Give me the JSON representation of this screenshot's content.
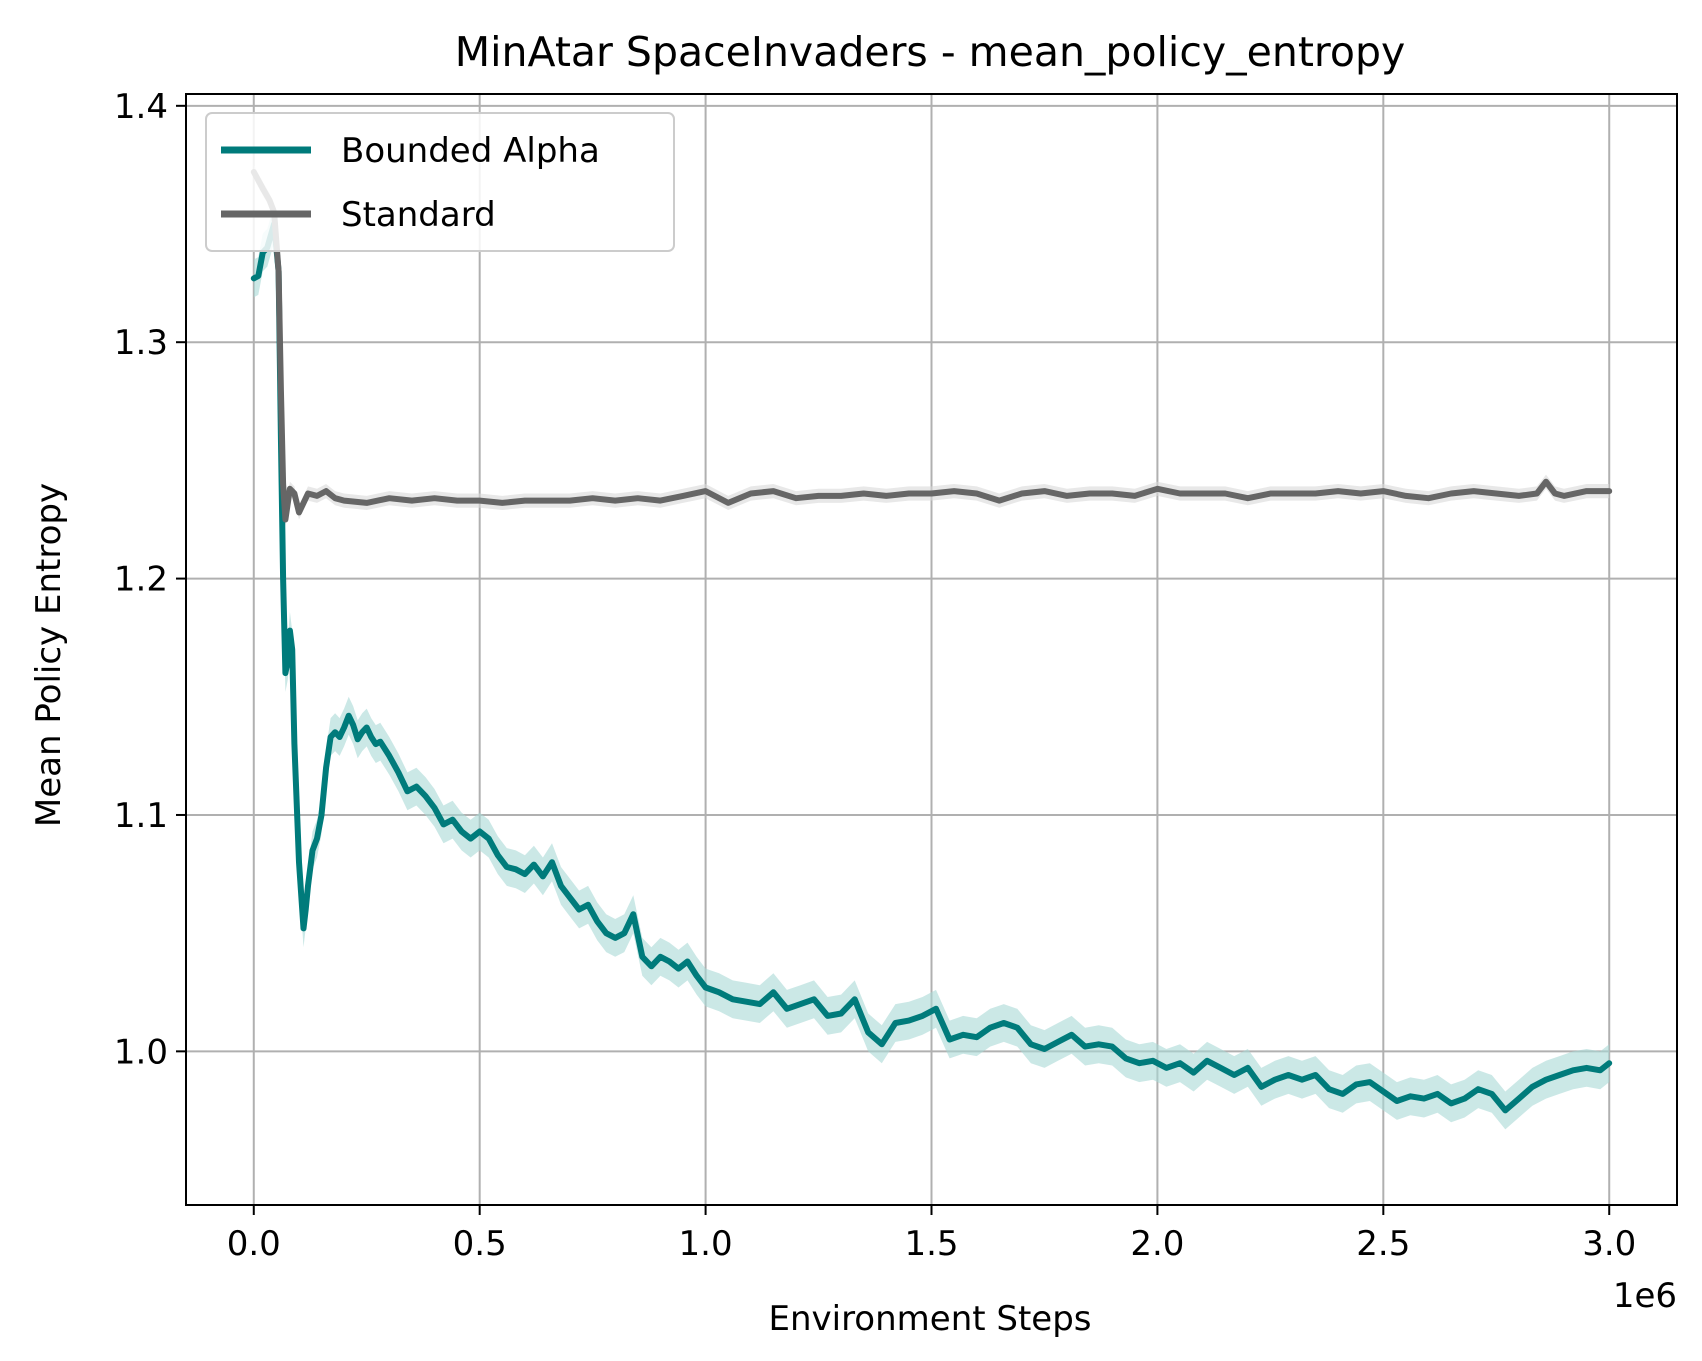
{
  "chart_data": {
    "type": "line",
    "title": "MinAtar SpaceInvaders - mean_policy_entropy",
    "xlabel": "Environment Steps",
    "ylabel": "Mean Policy Entropy",
    "x_offset_label": "1e6",
    "x_scale_note": "x values in millions of environment steps (axis offset label 1e6)",
    "xlim": [
      -0.15,
      3.15
    ],
    "ylim": [
      0.935,
      1.405
    ],
    "xticks": [
      0.0,
      0.5,
      1.0,
      1.5,
      2.0,
      2.5,
      3.0
    ],
    "xtick_labels": [
      "0.0",
      "0.5",
      "1.0",
      "1.5",
      "2.0",
      "2.5",
      "3.0"
    ],
    "yticks": [
      1.0,
      1.1,
      1.2,
      1.3,
      1.4
    ],
    "ytick_labels": [
      "1.0",
      "1.1",
      "1.2",
      "1.3",
      "1.4"
    ],
    "grid": true,
    "legend_position": "top-left",
    "series": [
      {
        "name": "Bounded Alpha",
        "color": "#007b7b",
        "band_color": "#a9d8d6",
        "x": [
          0.0,
          0.01,
          0.02,
          0.03,
          0.045,
          0.055,
          0.06,
          0.065,
          0.07,
          0.075,
          0.08,
          0.085,
          0.09,
          0.1,
          0.11,
          0.115,
          0.12,
          0.13,
          0.14,
          0.15,
          0.16,
          0.17,
          0.18,
          0.19,
          0.2,
          0.21,
          0.22,
          0.23,
          0.24,
          0.25,
          0.26,
          0.27,
          0.28,
          0.3,
          0.32,
          0.34,
          0.36,
          0.38,
          0.4,
          0.42,
          0.44,
          0.46,
          0.48,
          0.5,
          0.52,
          0.54,
          0.56,
          0.58,
          0.6,
          0.62,
          0.64,
          0.66,
          0.68,
          0.7,
          0.72,
          0.74,
          0.76,
          0.78,
          0.8,
          0.82,
          0.84,
          0.86,
          0.88,
          0.9,
          0.92,
          0.94,
          0.96,
          0.98,
          1.0,
          1.03,
          1.06,
          1.09,
          1.12,
          1.15,
          1.18,
          1.21,
          1.24,
          1.27,
          1.3,
          1.33,
          1.36,
          1.39,
          1.42,
          1.45,
          1.48,
          1.51,
          1.54,
          1.57,
          1.6,
          1.63,
          1.66,
          1.69,
          1.72,
          1.75,
          1.78,
          1.81,
          1.84,
          1.87,
          1.9,
          1.93,
          1.96,
          1.99,
          2.02,
          2.05,
          2.08,
          2.11,
          2.14,
          2.17,
          2.2,
          2.23,
          2.26,
          2.29,
          2.32,
          2.35,
          2.38,
          2.41,
          2.44,
          2.47,
          2.5,
          2.53,
          2.56,
          2.59,
          2.62,
          2.65,
          2.68,
          2.71,
          2.74,
          2.77,
          2.8,
          2.83,
          2.86,
          2.89,
          2.92,
          2.95,
          2.98,
          3.0
        ],
        "values": [
          1.327,
          1.328,
          1.338,
          1.34,
          1.35,
          1.33,
          1.26,
          1.2,
          1.16,
          1.165,
          1.178,
          1.17,
          1.13,
          1.08,
          1.052,
          1.06,
          1.07,
          1.085,
          1.09,
          1.1,
          1.12,
          1.133,
          1.135,
          1.133,
          1.137,
          1.142,
          1.138,
          1.132,
          1.135,
          1.137,
          1.133,
          1.13,
          1.131,
          1.125,
          1.118,
          1.11,
          1.112,
          1.108,
          1.103,
          1.096,
          1.098,
          1.093,
          1.09,
          1.093,
          1.09,
          1.083,
          1.078,
          1.077,
          1.075,
          1.079,
          1.074,
          1.08,
          1.07,
          1.065,
          1.06,
          1.062,
          1.055,
          1.05,
          1.048,
          1.05,
          1.058,
          1.04,
          1.036,
          1.04,
          1.038,
          1.035,
          1.038,
          1.032,
          1.027,
          1.025,
          1.022,
          1.021,
          1.02,
          1.025,
          1.018,
          1.02,
          1.022,
          1.015,
          1.016,
          1.022,
          1.008,
          1.003,
          1.012,
          1.013,
          1.015,
          1.018,
          1.005,
          1.007,
          1.006,
          1.01,
          1.012,
          1.01,
          1.003,
          1.001,
          1.004,
          1.007,
          1.002,
          1.003,
          1.002,
          0.997,
          0.995,
          0.996,
          0.993,
          0.995,
          0.991,
          0.996,
          0.993,
          0.99,
          0.993,
          0.985,
          0.988,
          0.99,
          0.988,
          0.99,
          0.984,
          0.982,
          0.986,
          0.987,
          0.983,
          0.979,
          0.981,
          0.98,
          0.982,
          0.978,
          0.98,
          0.984,
          0.982,
          0.975,
          0.98,
          0.985,
          0.988,
          0.99,
          0.992,
          0.993,
          0.992,
          0.995
        ],
        "band_halfwidth": 0.008
      },
      {
        "name": "Standard",
        "color": "#666666",
        "band_color": "#d8d8d8",
        "x": [
          0.0,
          0.02,
          0.035,
          0.045,
          0.055,
          0.06,
          0.065,
          0.07,
          0.08,
          0.09,
          0.1,
          0.12,
          0.14,
          0.16,
          0.18,
          0.2,
          0.25,
          0.3,
          0.35,
          0.4,
          0.45,
          0.5,
          0.55,
          0.6,
          0.65,
          0.7,
          0.75,
          0.8,
          0.85,
          0.9,
          0.95,
          1.0,
          1.05,
          1.1,
          1.15,
          1.2,
          1.25,
          1.3,
          1.35,
          1.4,
          1.45,
          1.5,
          1.55,
          1.6,
          1.65,
          1.7,
          1.75,
          1.8,
          1.85,
          1.9,
          1.95,
          2.0,
          2.05,
          2.1,
          2.15,
          2.2,
          2.25,
          2.3,
          2.35,
          2.4,
          2.45,
          2.5,
          2.55,
          2.6,
          2.65,
          2.7,
          2.75,
          2.8,
          2.84,
          2.86,
          2.88,
          2.9,
          2.95,
          3.0
        ],
        "values": [
          1.372,
          1.365,
          1.36,
          1.355,
          1.33,
          1.28,
          1.24,
          1.225,
          1.238,
          1.236,
          1.228,
          1.236,
          1.235,
          1.237,
          1.234,
          1.233,
          1.232,
          1.234,
          1.233,
          1.234,
          1.233,
          1.233,
          1.232,
          1.233,
          1.233,
          1.233,
          1.234,
          1.233,
          1.234,
          1.233,
          1.235,
          1.237,
          1.232,
          1.236,
          1.237,
          1.234,
          1.235,
          1.235,
          1.236,
          1.235,
          1.236,
          1.236,
          1.237,
          1.236,
          1.233,
          1.236,
          1.237,
          1.235,
          1.236,
          1.236,
          1.235,
          1.238,
          1.236,
          1.236,
          1.236,
          1.234,
          1.236,
          1.236,
          1.236,
          1.237,
          1.236,
          1.237,
          1.235,
          1.234,
          1.236,
          1.237,
          1.236,
          1.235,
          1.236,
          1.241,
          1.236,
          1.235,
          1.237,
          1.237
        ],
        "band_halfwidth": 0.003
      }
    ]
  }
}
